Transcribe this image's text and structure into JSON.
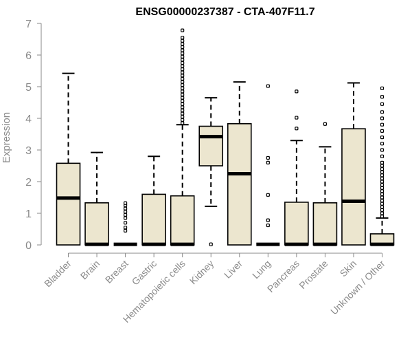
{
  "chart_data": {
    "type": "boxplot",
    "title": "ENSG00000237387 - CTA-407F11.7",
    "xlabel": "",
    "ylabel": "Expression",
    "ylim": [
      0,
      7
    ],
    "yticks": [
      0,
      1,
      2,
      3,
      4,
      5,
      6,
      7
    ],
    "grid": false,
    "legend": "none",
    "colors": {
      "box_fill": "#ece6cf",
      "box_stroke": "#000000",
      "axis": "#8a8a8a",
      "tick_text": "#8a8a8a",
      "title": "#000000"
    },
    "categories": [
      "Bladder",
      "Brain",
      "Breast",
      "Gastric",
      "Hematopoietic cells",
      "Kidney",
      "Liver",
      "Lung",
      "Pancreas",
      "Prostate",
      "Skin",
      "Unknown / Other"
    ],
    "boxes": [
      {
        "name": "Bladder",
        "min": 0,
        "q1": 0,
        "median": 1.48,
        "q3": 2.58,
        "max": 5.42,
        "outliers": []
      },
      {
        "name": "Brain",
        "min": 0,
        "q1": 0,
        "median": 0.02,
        "q3": 1.33,
        "max": 2.92,
        "outliers": []
      },
      {
        "name": "Breast",
        "min": 0,
        "q1": 0,
        "median": 0.02,
        "q3": 0.02,
        "max": 0.02,
        "outliers": [
          0.45,
          0.55,
          0.7,
          0.85,
          0.95,
          1.05,
          1.15,
          1.25,
          1.32
        ]
      },
      {
        "name": "Gastric",
        "min": 0,
        "q1": 0,
        "median": 0.02,
        "q3": 1.6,
        "max": 2.8,
        "outliers": []
      },
      {
        "name": "Hematopoietic cells",
        "min": 0,
        "q1": 0,
        "median": 0.02,
        "q3": 1.55,
        "max": 3.8,
        "outliers": [
          3.85,
          3.95,
          4.05,
          4.15,
          4.25,
          4.35,
          4.45,
          4.55,
          4.65,
          4.75,
          4.85,
          4.95,
          5.05,
          5.15,
          5.25,
          5.35,
          5.45,
          5.55,
          5.65,
          5.75,
          5.85,
          5.95,
          6.05,
          6.15,
          6.25,
          6.35,
          6.45,
          6.55,
          6.78
        ]
      },
      {
        "name": "Kidney",
        "min": 1.22,
        "q1": 2.5,
        "median": 3.42,
        "q3": 3.75,
        "max": 4.65,
        "outliers": [
          0.02
        ]
      },
      {
        "name": "Liver",
        "min": 0,
        "q1": 0,
        "median": 2.25,
        "q3": 3.83,
        "max": 5.15,
        "outliers": []
      },
      {
        "name": "Lung",
        "min": 0,
        "q1": 0,
        "median": 0.02,
        "q3": 0.02,
        "max": 0.02,
        "outliers": [
          0.62,
          0.78,
          1.58,
          2.6,
          2.75,
          5.02
        ]
      },
      {
        "name": "Pancreas",
        "min": 0,
        "q1": 0,
        "median": 0.02,
        "q3": 1.35,
        "max": 3.3,
        "outliers": [
          3.68,
          4.02,
          4.85
        ]
      },
      {
        "name": "Prostate",
        "min": 0,
        "q1": 0,
        "median": 0.02,
        "q3": 1.33,
        "max": 3.1,
        "outliers": [
          3.82
        ]
      },
      {
        "name": "Skin",
        "min": 0,
        "q1": 0,
        "median": 1.38,
        "q3": 3.67,
        "max": 5.12,
        "outliers": []
      },
      {
        "name": "Unknown / Other",
        "min": 0,
        "q1": 0,
        "median": 0.02,
        "q3": 0.35,
        "max": 0.85,
        "outliers": [
          0.9,
          1.0,
          1.1,
          1.2,
          1.3,
          1.4,
          1.5,
          1.6,
          1.7,
          1.8,
          1.9,
          2.0,
          2.1,
          2.2,
          2.3,
          2.4,
          2.5,
          2.6,
          2.8,
          3.0,
          3.2,
          3.4,
          3.6,
          3.8,
          4.0,
          4.2,
          4.45,
          4.68,
          4.95
        ]
      }
    ]
  }
}
